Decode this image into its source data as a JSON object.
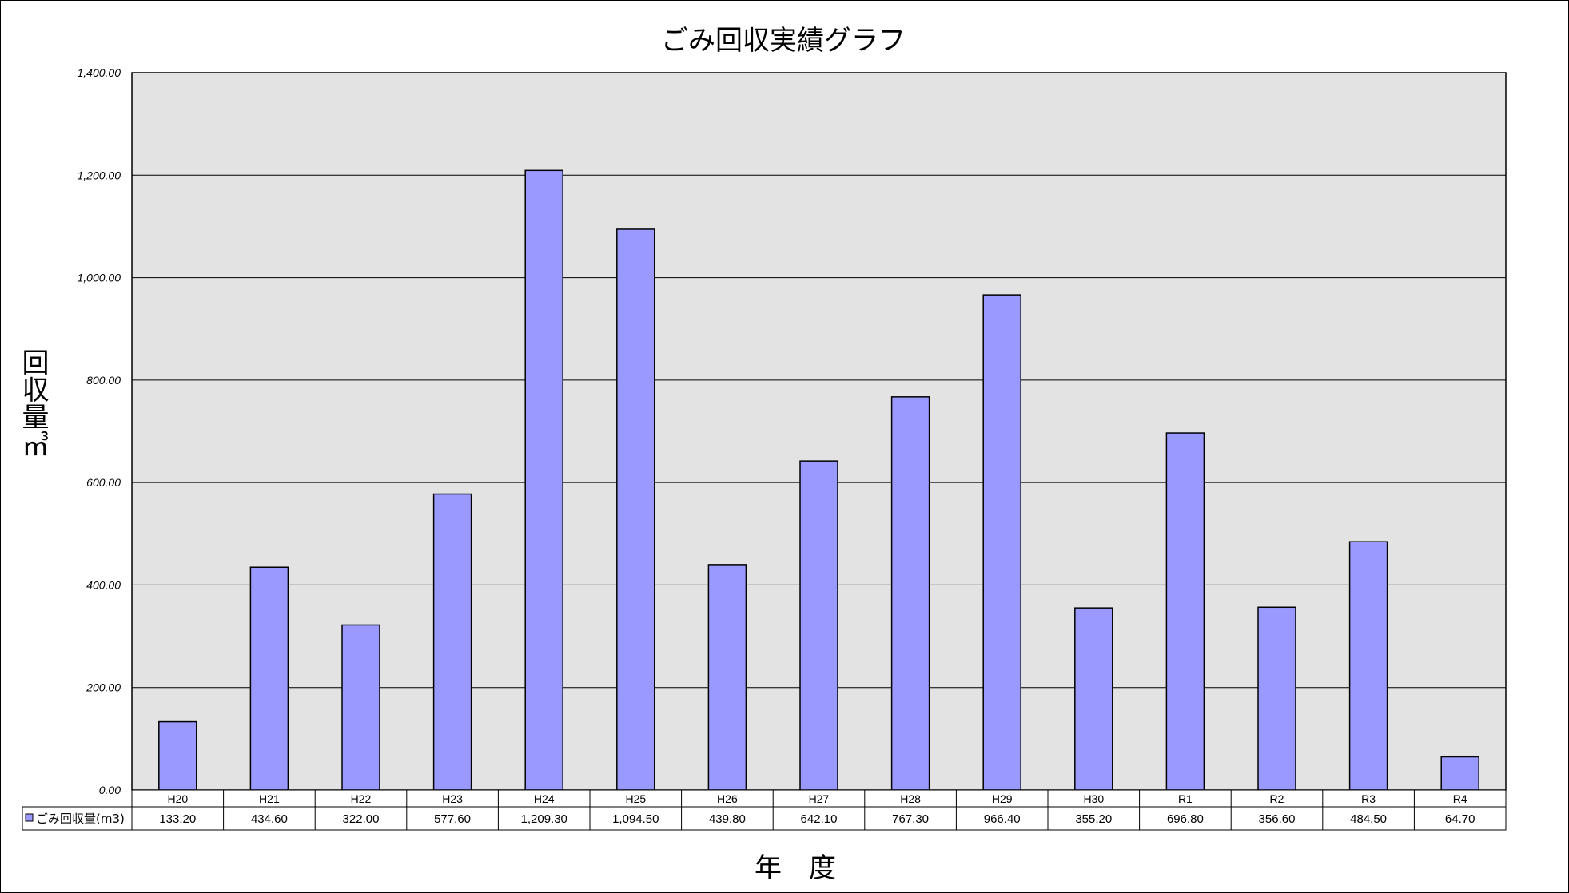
{
  "chart_data": {
    "type": "bar",
    "title": "ごみ回収実績グラフ",
    "xlabel": "年　度",
    "ylabel": "回収量㎥",
    "ylim": [
      0,
      1400
    ],
    "yticks": [
      "0.00",
      "200.00",
      "400.00",
      "600.00",
      "800.00",
      "1,000.00",
      "1,200.00",
      "1,400.00"
    ],
    "grid": true,
    "categories": [
      "H20",
      "H21",
      "H22",
      "H23",
      "H24",
      "H25",
      "H26",
      "H27",
      "H28",
      "H29",
      "H30",
      "R1",
      "R2",
      "R3",
      "R4"
    ],
    "series": [
      {
        "name": "ごみ回収量(m3)",
        "values": [
          133.2,
          434.6,
          322.0,
          577.6,
          1209.3,
          1094.5,
          439.8,
          642.1,
          767.3,
          966.4,
          355.2,
          696.8,
          356.6,
          484.5,
          64.7
        ],
        "labels": [
          "133.20",
          "434.60",
          "322.00",
          "577.60",
          "1,209.30",
          "1,094.50",
          "439.80",
          "642.10",
          "767.30",
          "966.40",
          "355.20",
          "696.80",
          "356.60",
          "484.50",
          "64.70"
        ]
      }
    ],
    "data_table": true,
    "colors": {
      "bar": "#9999ff",
      "plot_bg": "#e3e3e3"
    }
  }
}
